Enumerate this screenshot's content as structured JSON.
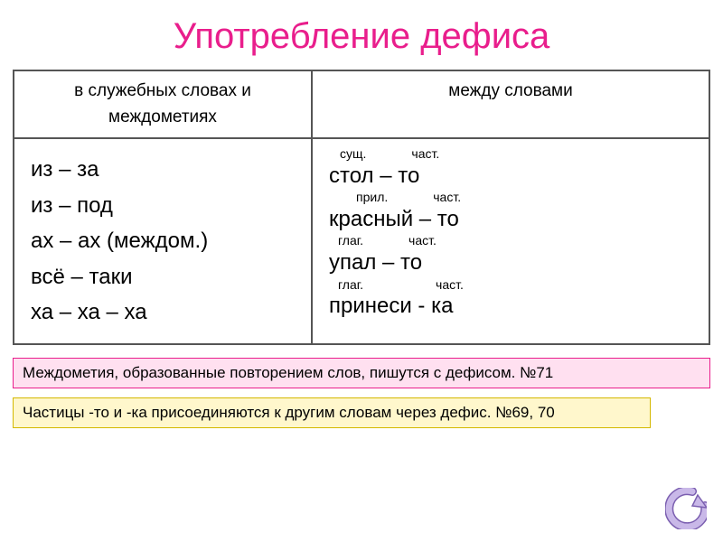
{
  "title": "Употребление дефиса",
  "headers": {
    "left": "в служебных словах и междометиях",
    "right": "между словами"
  },
  "left_column": [
    "из – за",
    "из – под",
    "ах – ах  (междом.)",
    "всё – таки",
    "ха – ха – ха"
  ],
  "right_column": [
    {
      "anno_left": "сущ.",
      "anno_right": "част.",
      "text": "стол – то",
      "anno_gap": 50,
      "anno_indent": 12
    },
    {
      "anno_left": "прил.",
      "anno_right": "част.",
      "text": "красный – то",
      "anno_gap": 50,
      "anno_indent": 30
    },
    {
      "anno_left": "глаг.",
      "anno_right": "част.",
      "text": "упал – то",
      "anno_gap": 50,
      "anno_indent": 10
    },
    {
      "anno_left": "глаг.",
      "anno_right": "част.",
      "text": "принеси - ка",
      "anno_gap": 80,
      "anno_indent": 10
    }
  ],
  "note1": "Междометия, образованные повторением слов, пишутся с дефисом.  №71",
  "note2": "Частицы  -то и  -ка присоединяются к другим словам через дефис. №69, 70",
  "colors": {
    "title": "#e91e8c",
    "border": "#555555",
    "note1_bg": "#ffe0f0",
    "note1_border": "#e91e8c",
    "note2_bg": "#fff7cc",
    "note2_border": "#d4b800",
    "back_icon_fill": "#c9b8e8",
    "back_icon_stroke": "#7b5fb0"
  }
}
